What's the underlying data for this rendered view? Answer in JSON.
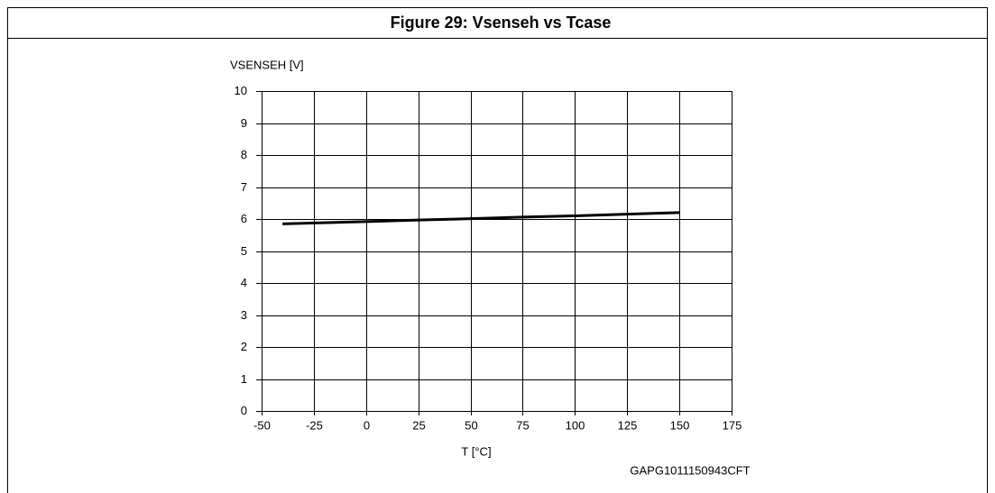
{
  "chart_data": {
    "type": "line",
    "title": "Figure 29: Vsenseh vs Tcase",
    "ylabel": "VSENSEH [V]",
    "xlabel": "T [°C]",
    "annotation": "GAPG1011150943CFT",
    "x": [
      -40,
      0,
      25,
      50,
      75,
      100,
      125,
      150
    ],
    "series": [
      {
        "name": "Vsenseh",
        "color": "#000000",
        "values": [
          5.85,
          5.92,
          5.97,
          6.01,
          6.06,
          6.1,
          6.15,
          6.2
        ]
      }
    ],
    "xlim": [
      -50,
      175
    ],
    "xticks": [
      -50,
      -25,
      0,
      25,
      50,
      75,
      100,
      125,
      150,
      175
    ],
    "ylim": [
      0,
      10
    ],
    "yticks": [
      0,
      1,
      2,
      3,
      4,
      5,
      6,
      7,
      8,
      9,
      10
    ],
    "grid": true
  }
}
